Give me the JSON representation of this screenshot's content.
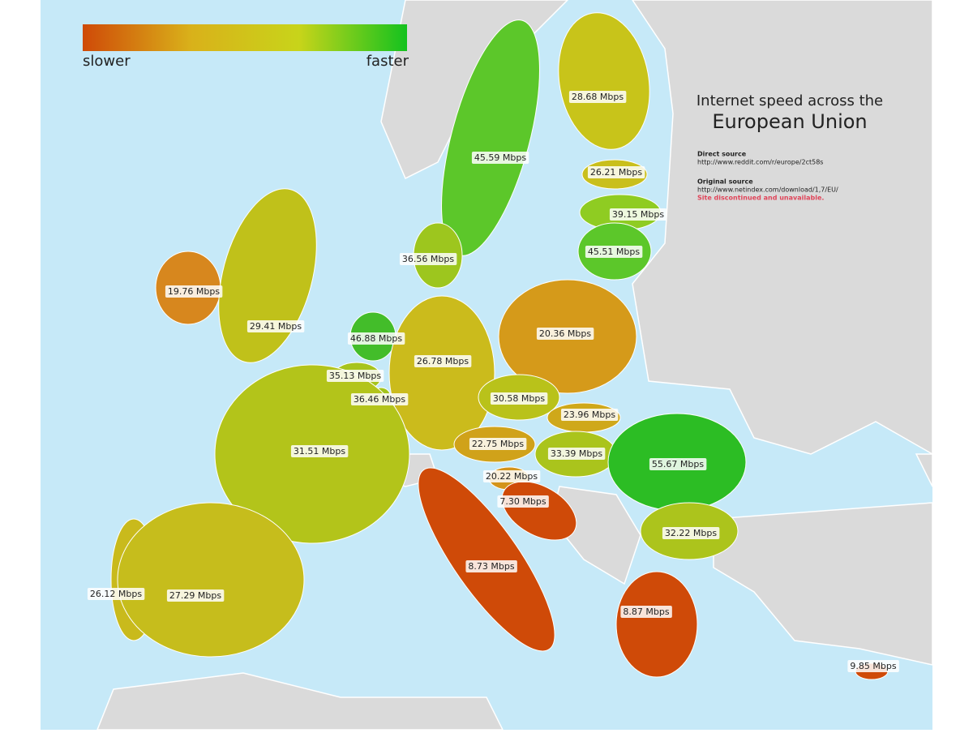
{
  "legend": {
    "low": "slower",
    "high": "faster",
    "gradient": [
      "#cf4a08",
      "#d9b11a",
      "#c8d41a",
      "#14c21e"
    ]
  },
  "title": {
    "line1": "Internet speed across the",
    "line2": "European Union"
  },
  "sources": {
    "direct_heading": "Direct source",
    "direct_url": "http://www.reddit.com/r/europe/2ct58s",
    "original_heading": "Original source",
    "original_url": "http://www.netindex.com/download/1,7/EU/",
    "note": "Site discontinued and unavailable."
  },
  "regions": [
    {
      "label": "28.68 Mbps",
      "color": "#c8c41a"
    },
    {
      "label": "45.59 Mbps",
      "color": "#5cc72a"
    },
    {
      "label": "26.21 Mbps",
      "color": "#c9bf1c"
    },
    {
      "label": "39.15 Mbps",
      "color": "#8fcc22"
    },
    {
      "label": "45.51 Mbps",
      "color": "#5cc72a"
    },
    {
      "label": "36.56 Mbps",
      "color": "#9dc61e"
    },
    {
      "label": "19.76 Mbps",
      "color": "#d7871e"
    },
    {
      "label": "29.41 Mbps",
      "color": "#c0c11a"
    },
    {
      "label": "46.88 Mbps",
      "color": "#43bd2a"
    },
    {
      "label": "20.36 Mbps",
      "color": "#d59a1a"
    },
    {
      "label": "26.78 Mbps",
      "color": "#cbbb1c"
    },
    {
      "label": "35.13 Mbps",
      "color": "#a7c41c"
    },
    {
      "label": "36.46 Mbps",
      "color": "#a3c41c"
    },
    {
      "label": "30.58 Mbps",
      "color": "#b9c21a"
    },
    {
      "label": "23.96 Mbps",
      "color": "#cfa81a"
    },
    {
      "label": "31.51 Mbps",
      "color": "#b3c41a"
    },
    {
      "label": "22.75 Mbps",
      "color": "#d0a21a"
    },
    {
      "label": "33.39 Mbps",
      "color": "#aac41c"
    },
    {
      "label": "55.67 Mbps",
      "color": "#2cbd24"
    },
    {
      "label": "20.22 Mbps",
      "color": "#d4941a"
    },
    {
      "label": "7.30 Mbps",
      "color": "#cf4a08"
    },
    {
      "label": "32.22 Mbps",
      "color": "#acc41c"
    },
    {
      "label": "26.12 Mbps",
      "color": "#c9ba1c"
    },
    {
      "label": "27.29 Mbps",
      "color": "#c6bd1c"
    },
    {
      "label": "8.73 Mbps",
      "color": "#cf4a08"
    },
    {
      "label": "8.87 Mbps",
      "color": "#cf4a08"
    },
    {
      "label": "9.85 Mbps",
      "color": "#cf4a08"
    }
  ]
}
